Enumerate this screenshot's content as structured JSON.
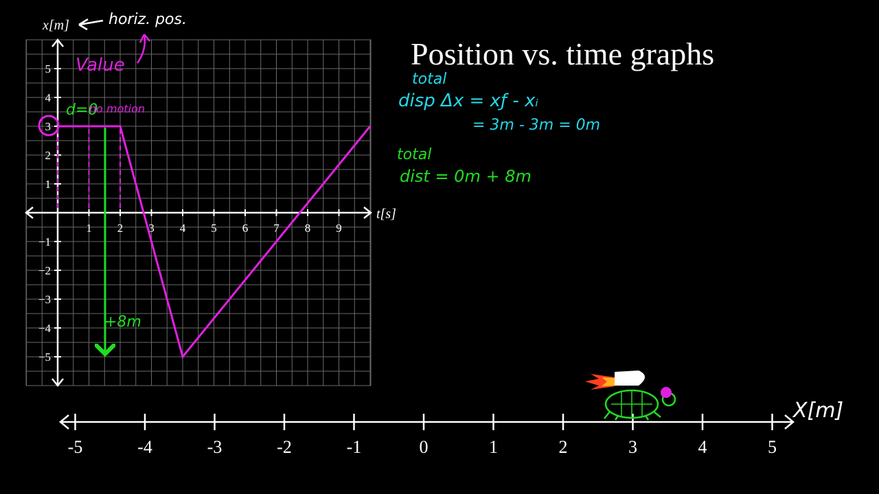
{
  "title": "Position vs. time graphs",
  "colors": {
    "background": "#000000",
    "grid": "#6a6a6a",
    "axis": "#ffffff",
    "curve": "#e020e0",
    "green": "#22dd22",
    "cyan": "#22d8e8"
  },
  "chart_data": {
    "type": "line",
    "xlabel": "t[s]",
    "ylabel": "x[m]",
    "xlim": [
      -1,
      10
    ],
    "ylim": [
      -6,
      6
    ],
    "x_ticks": [
      "1",
      "2",
      "3",
      "4",
      "5",
      "6",
      "7",
      "8",
      "9"
    ],
    "y_ticks": [
      "5",
      "4",
      "3",
      "2",
      "1",
      "−1",
      "−2",
      "−3",
      "−4",
      "−5"
    ],
    "grid": true,
    "series": [
      {
        "x": [
          0,
          2,
          4,
          10
        ],
        "y": [
          3,
          3,
          -5,
          3
        ]
      }
    ]
  },
  "annotations": {
    "ylabel_note": "horiz. pos.",
    "value_note": "Value",
    "d_zero": "d=0",
    "no_motion": "no motion",
    "plus_8m": "+8m"
  },
  "notes": {
    "total_1": "total",
    "disp_line": "disp Δx = xƒ - xᵢ",
    "disp_result": "= 3m - 3m = 0m",
    "total_2": "total",
    "dist_line": "dist = 0m + 8m"
  },
  "number_line": {
    "label": "X[m]",
    "ticks": [
      "-5",
      "-4",
      "-3",
      "-2",
      "-1",
      "0",
      "1",
      "2",
      "3",
      "4",
      "5"
    ],
    "turtle_position": 3
  }
}
